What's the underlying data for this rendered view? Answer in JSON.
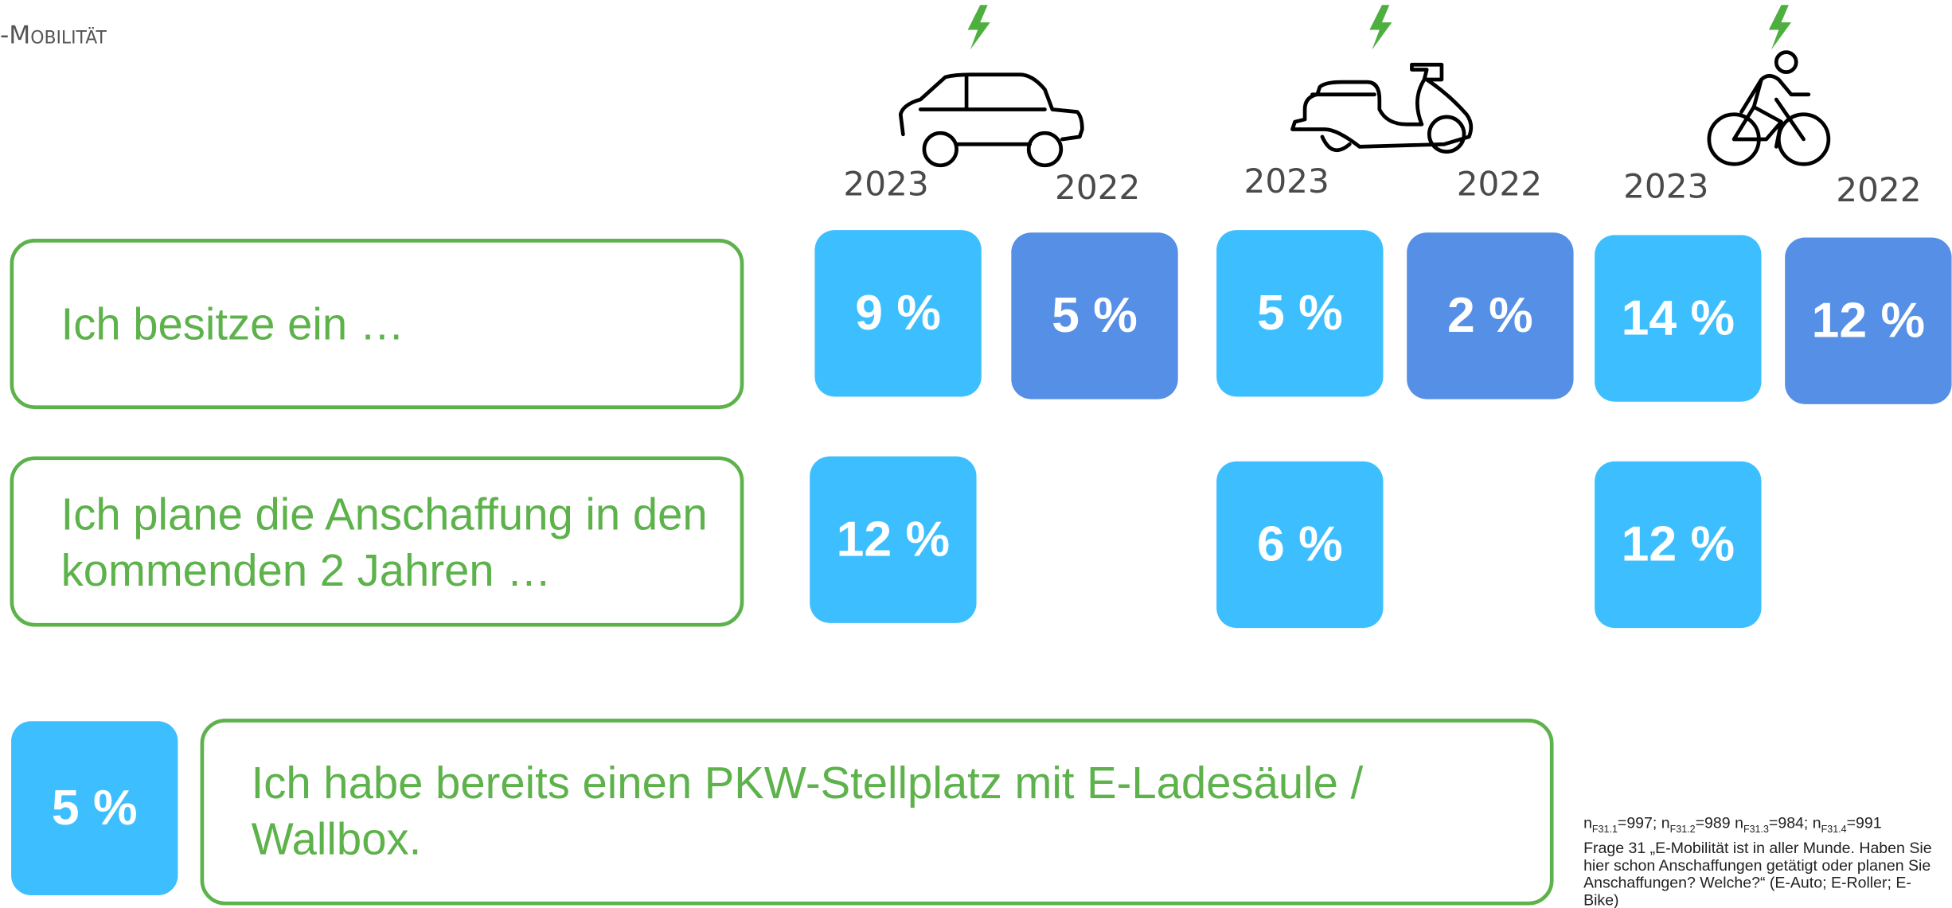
{
  "header": {
    "title": "-Mobilität"
  },
  "groups": [
    {
      "years": [
        "2023",
        "2022"
      ]
    },
    {
      "years": [
        "2023",
        "2022"
      ]
    },
    {
      "years": [
        "2023",
        "2022"
      ]
    }
  ],
  "rows": [
    {
      "label": "Ich besitze ein …",
      "values": [
        "9 %",
        "5 %",
        "5 %",
        "2 %",
        "14 %",
        "12 %"
      ]
    },
    {
      "label": "Ich plane die Anschaffung in den kommenden 2 Jahren …",
      "values": [
        "12 %",
        "6 %",
        "12 %"
      ]
    }
  ],
  "wallbox": {
    "value": "5 %",
    "label": "Ich habe bereits einen PKW-Stellplatz mit E-Ladesäule / Wallbox."
  },
  "footnote": {
    "sample": [
      {
        "n": "n",
        "sub": "F31.1",
        "text": "=997;"
      },
      {
        "n": "n",
        "sub": "F31.2",
        "text": "=989"
      },
      {
        "n": "n",
        "sub": "F31.3",
        "text": "=984;"
      },
      {
        "n": "n",
        "sub": "F31.4",
        "text": "=991"
      }
    ],
    "question": "Frage 31 „E-Mobilität ist in aller Munde. Haben Sie hier schon Anschaffungen getätigt oder planen Sie Anschaffungen? Welche?“ (E-Auto; E-Roller; E-Bike)"
  }
}
